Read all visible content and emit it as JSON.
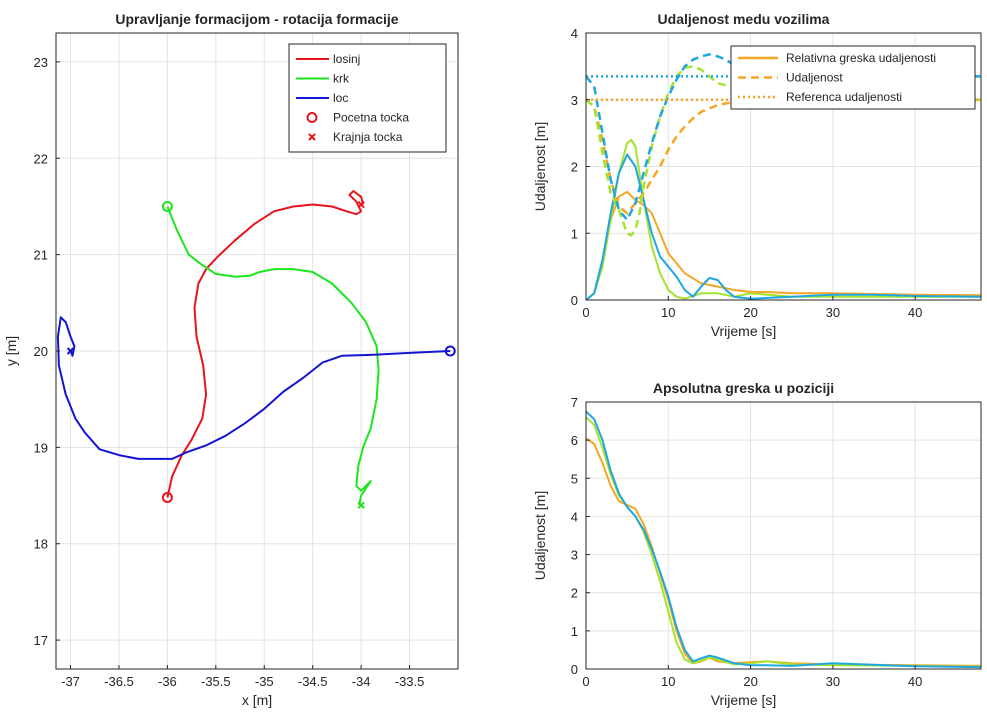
{
  "chart_data": [
    {
      "type": "line",
      "title": "Upravljanje formacijom - rotacija formacije",
      "xlabel": "x [m]",
      "ylabel": "y [m]",
      "xlim": [
        -37.15,
        -33.0
      ],
      "ylim": [
        16.7,
        23.3
      ],
      "x_ticks": [
        -37,
        -36.5,
        -36,
        -35.5,
        -35,
        -34.5,
        -34,
        -33.5
      ],
      "x_tick_labels": [
        "-37",
        "-36.5",
        "-36",
        "-35.5",
        "-35",
        "-34.5",
        "-34",
        "-33.5"
      ],
      "y_ticks": [
        17,
        18,
        19,
        20,
        21,
        22,
        23
      ],
      "y_tick_labels": [
        "17",
        "18",
        "19",
        "20",
        "21",
        "22",
        "23"
      ],
      "grid": true,
      "legend_position": "top-right",
      "legend": [
        "losinj",
        "krk",
        "loc",
        "Pocetna tocka",
        "Krajnja tocka"
      ],
      "series": [
        {
          "name": "losinj",
          "color": "#e8141b",
          "start": [
            -36.0,
            18.48
          ],
          "end": [
            -34.0,
            21.52
          ],
          "x": [
            -36.0,
            -35.95,
            -35.85,
            -35.75,
            -35.64,
            -35.6,
            -35.63,
            -35.7,
            -35.72,
            -35.68,
            -35.6,
            -35.48,
            -35.3,
            -35.1,
            -34.9,
            -34.7,
            -34.5,
            -34.3,
            -34.15,
            -34.05,
            -34.0,
            -34.05,
            -34.12,
            -34.08,
            -34.0,
            -33.98
          ],
          "y": [
            18.48,
            18.7,
            18.92,
            19.08,
            19.3,
            19.55,
            19.85,
            20.15,
            20.45,
            20.7,
            20.85,
            20.98,
            21.15,
            21.32,
            21.45,
            21.5,
            21.52,
            21.5,
            21.45,
            21.42,
            21.45,
            21.55,
            21.62,
            21.66,
            21.6,
            21.52
          ]
        },
        {
          "name": "krk",
          "color": "#1ee61e",
          "start": [
            -36.0,
            21.5
          ],
          "end": [
            -34.0,
            18.4
          ],
          "x": [
            -36.0,
            -35.9,
            -35.78,
            -35.65,
            -35.5,
            -35.3,
            -35.15,
            -35.05,
            -34.9,
            -34.7,
            -34.5,
            -34.3,
            -34.1,
            -33.95,
            -33.84,
            -33.82,
            -33.84,
            -33.9,
            -33.98,
            -34.03,
            -34.05,
            -34.0,
            -33.9,
            -34.0,
            -34.02
          ],
          "y": [
            21.5,
            21.25,
            21.0,
            20.9,
            20.8,
            20.77,
            20.78,
            20.82,
            20.85,
            20.85,
            20.82,
            20.7,
            20.5,
            20.3,
            20.05,
            19.8,
            19.5,
            19.2,
            19.0,
            18.8,
            18.6,
            18.55,
            18.65,
            18.5,
            18.4
          ]
        },
        {
          "name": "loc",
          "color": "#1414d2",
          "start": [
            -33.08,
            20.0
          ],
          "end": [
            -37.0,
            20.0
          ],
          "x": [
            -33.08,
            -33.5,
            -33.9,
            -34.2,
            -34.4,
            -34.6,
            -34.8,
            -35.0,
            -35.2,
            -35.4,
            -35.6,
            -35.8,
            -35.95,
            -36.1,
            -36.3,
            -36.5,
            -36.7,
            -36.85,
            -36.95,
            -37.05,
            -37.12,
            -37.13,
            -37.1,
            -37.05,
            -37.0,
            -36.96,
            -36.98,
            -37.0
          ],
          "y": [
            20.0,
            19.98,
            19.96,
            19.95,
            19.88,
            19.72,
            19.58,
            19.4,
            19.25,
            19.12,
            19.02,
            18.95,
            18.88,
            18.88,
            18.88,
            18.92,
            18.98,
            19.15,
            19.3,
            19.55,
            19.85,
            20.15,
            20.35,
            20.3,
            20.15,
            20.05,
            19.95,
            20.0
          ]
        }
      ]
    },
    {
      "type": "line",
      "title": "Udaljenost medu vozilima",
      "xlabel": "Vrijeme [s]",
      "ylabel": "Udaljenost [m]",
      "xlim": [
        0,
        48
      ],
      "ylim": [
        0,
        4
      ],
      "x_ticks": [
        0,
        10,
        20,
        30,
        40
      ],
      "x_tick_labels": [
        "0",
        "10",
        "20",
        "30",
        "40"
      ],
      "y_ticks": [
        0,
        1,
        2,
        3,
        4
      ],
      "y_tick_labels": [
        "0",
        "1",
        "2",
        "3",
        "4"
      ],
      "grid": true,
      "legend_position": "top-right",
      "legend": [
        "Relativna greska udaljenosti",
        "Udaljenost",
        "Referenca udaljenosti"
      ],
      "series": [
        {
          "style": "solid",
          "color": "#f5a623",
          "x": [
            0,
            1,
            2,
            3,
            4,
            5,
            6,
            7,
            8,
            9,
            10,
            12,
            14,
            16,
            18,
            20,
            22,
            25,
            30,
            35,
            40,
            48
          ],
          "y": [
            0,
            0.1,
            0.6,
            1.2,
            1.55,
            1.62,
            1.5,
            1.42,
            1.3,
            1.0,
            0.7,
            0.4,
            0.25,
            0.2,
            0.15,
            0.12,
            0.12,
            0.1,
            0.1,
            0.09,
            0.08,
            0.07
          ]
        },
        {
          "style": "solid",
          "color": "#a6e22e",
          "x": [
            0,
            1,
            2,
            3,
            4,
            5,
            5.5,
            6,
            7,
            8,
            9,
            10,
            11,
            12,
            14,
            16,
            18,
            20,
            25,
            30,
            40,
            48
          ],
          "y": [
            0,
            0.1,
            0.5,
            1.2,
            1.9,
            2.35,
            2.4,
            2.3,
            1.5,
            0.8,
            0.4,
            0.15,
            0.05,
            0.02,
            0.1,
            0.1,
            0.05,
            0.1,
            0.05,
            0.05,
            0.05,
            0.05
          ]
        },
        {
          "style": "solid",
          "color": "#1fa7e0",
          "x": [
            0,
            1,
            2,
            3,
            4,
            5,
            6,
            7,
            8,
            9,
            10,
            11,
            12,
            13,
            14,
            15,
            16,
            17,
            18,
            20,
            25,
            30,
            35,
            40,
            48
          ],
          "y": [
            0,
            0.1,
            0.6,
            1.3,
            1.9,
            2.18,
            2.0,
            1.5,
            1.0,
            0.65,
            0.5,
            0.35,
            0.15,
            0.05,
            0.2,
            0.33,
            0.3,
            0.15,
            0.05,
            0.02,
            0.05,
            0.08,
            0.08,
            0.06,
            0.05
          ]
        },
        {
          "style": "dashed",
          "color": "#f5a623",
          "x": [
            0,
            1,
            2,
            3,
            4,
            5,
            6,
            7,
            8,
            9,
            10,
            11,
            12,
            13,
            14,
            16,
            18,
            20,
            22,
            25,
            30,
            40,
            48
          ],
          "y": [
            3.0,
            2.9,
            2.4,
            1.8,
            1.4,
            1.3,
            1.45,
            1.6,
            1.8,
            2.0,
            2.25,
            2.45,
            2.6,
            2.72,
            2.82,
            2.92,
            2.97,
            3.0,
            3.02,
            3.03,
            3.02,
            3.0,
            3.0
          ]
        },
        {
          "style": "dashed",
          "color": "#a6e22e",
          "x": [
            0,
            1,
            2,
            3,
            4,
            5,
            5.5,
            6,
            6.5,
            7,
            8,
            9,
            10,
            11,
            12,
            13,
            14,
            15,
            16,
            18,
            20,
            25,
            30,
            48
          ],
          "y": [
            3.0,
            2.9,
            2.2,
            1.6,
            1.35,
            1.0,
            0.97,
            1.05,
            1.3,
            1.7,
            2.3,
            2.75,
            3.1,
            3.35,
            3.48,
            3.5,
            3.45,
            3.35,
            3.25,
            3.18,
            3.12,
            3.05,
            3.02,
            3.0
          ]
        },
        {
          "style": "dashed",
          "color": "#1fa7e0",
          "x": [
            0,
            1,
            2,
            3,
            4,
            5,
            6,
            7,
            8,
            9,
            10,
            11,
            12,
            13,
            14,
            15,
            16,
            17,
            18,
            20,
            25,
            30,
            48
          ],
          "y": [
            3.35,
            3.2,
            2.5,
            1.8,
            1.35,
            1.2,
            1.45,
            1.9,
            2.35,
            2.75,
            3.05,
            3.3,
            3.5,
            3.6,
            3.65,
            3.68,
            3.65,
            3.6,
            3.52,
            3.45,
            3.38,
            3.35,
            3.35
          ]
        },
        {
          "style": "dotted",
          "color": "#f5a623",
          "x": [
            0,
            48
          ],
          "y": [
            3.0,
            3.0
          ]
        },
        {
          "style": "dotted",
          "color": "#1fa7e0",
          "x": [
            0,
            48
          ],
          "y": [
            3.35,
            3.35
          ]
        }
      ]
    },
    {
      "type": "line",
      "title": "Apsolutna greska u poziciji",
      "xlabel": "Vrijeme [s]",
      "ylabel": "Udaljenost [m]",
      "xlim": [
        0,
        48
      ],
      "ylim": [
        0,
        7
      ],
      "x_ticks": [
        0,
        10,
        20,
        30,
        40
      ],
      "x_tick_labels": [
        "0",
        "10",
        "20",
        "30",
        "40"
      ],
      "y_ticks": [
        0,
        1,
        2,
        3,
        4,
        5,
        6,
        7
      ],
      "y_tick_labels": [
        "0",
        "1",
        "2",
        "3",
        "4",
        "5",
        "6",
        "7"
      ],
      "grid": true,
      "series": [
        {
          "color": "#f5a623",
          "x": [
            0,
            1,
            2,
            3,
            4,
            5,
            6,
            7,
            8,
            9,
            10,
            11,
            12,
            13,
            14,
            15,
            16,
            18,
            20,
            22,
            25,
            30,
            40,
            48
          ],
          "y": [
            6.05,
            5.9,
            5.4,
            4.8,
            4.4,
            4.3,
            4.2,
            3.8,
            3.2,
            2.5,
            1.8,
            1.0,
            0.4,
            0.15,
            0.2,
            0.3,
            0.2,
            0.15,
            0.18,
            0.2,
            0.15,
            0.12,
            0.1,
            0.08
          ]
        },
        {
          "color": "#a6e22e",
          "x": [
            0,
            1,
            2,
            3,
            4,
            5,
            6,
            7,
            8,
            9,
            10,
            11,
            12,
            13,
            14,
            15,
            16,
            18,
            20,
            22,
            25,
            30,
            40,
            48
          ],
          "y": [
            6.6,
            6.4,
            5.8,
            5.1,
            4.55,
            4.25,
            4.0,
            3.6,
            3.0,
            2.3,
            1.5,
            0.7,
            0.25,
            0.15,
            0.22,
            0.3,
            0.25,
            0.12,
            0.15,
            0.2,
            0.12,
            0.1,
            0.08,
            0.06
          ]
        },
        {
          "color": "#1fa7e0",
          "x": [
            0,
            1,
            2,
            3,
            4,
            5,
            6,
            7,
            8,
            9,
            10,
            11,
            12,
            13,
            14,
            15,
            16,
            18,
            20,
            22,
            25,
            30,
            40,
            48
          ],
          "y": [
            6.75,
            6.55,
            6.0,
            5.2,
            4.6,
            4.25,
            4.0,
            3.65,
            3.15,
            2.55,
            1.9,
            1.1,
            0.5,
            0.2,
            0.28,
            0.35,
            0.3,
            0.15,
            0.1,
            0.1,
            0.08,
            0.15,
            0.07,
            0.05
          ]
        }
      ]
    }
  ]
}
